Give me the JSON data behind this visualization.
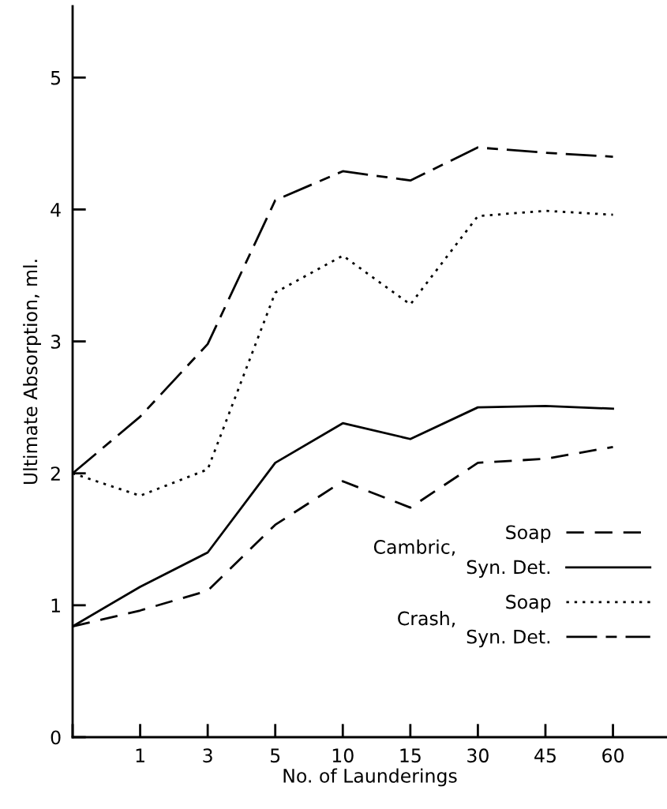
{
  "chart_data": {
    "type": "line",
    "xlabel": "No. of Launderings",
    "ylabel": "Ultimate Absorption, ml.",
    "categories": [
      null,
      "1",
      "3",
      "5",
      "10",
      "15",
      "30",
      "45",
      "60"
    ],
    "ylim": [
      0,
      5.54
    ],
    "yticks": [
      0,
      1,
      2,
      3,
      4,
      5
    ],
    "grid": false,
    "legend": "bottom right",
    "marker": "none",
    "annotations": [
      "Cambric,",
      "Crash,"
    ],
    "series": [
      {
        "name": "Soap",
        "color": "#000000",
        "line_style": "dashed",
        "values": [
          0.84,
          0.96,
          1.11,
          1.61,
          1.94,
          1.74,
          2.08,
          2.11,
          2.2
        ]
      },
      {
        "name": "Syn. Det.",
        "color": "#000000",
        "line_style": "solid",
        "values": [
          0.84,
          1.14,
          1.4,
          2.08,
          2.38,
          2.26,
          2.5,
          2.51,
          2.49
        ]
      },
      {
        "name": "Soap",
        "color": "#000000",
        "line_style": "dotted",
        "values": [
          2.0,
          1.83,
          2.03,
          3.37,
          3.65,
          3.28,
          3.95,
          3.99,
          3.96
        ]
      },
      {
        "name": "Syn. Det.",
        "color": "#000000",
        "line_style": "dashdot",
        "values": [
          2.0,
          2.43,
          2.98,
          4.07,
          4.29,
          4.22,
          4.47,
          4.43,
          4.4
        ]
      }
    ]
  }
}
